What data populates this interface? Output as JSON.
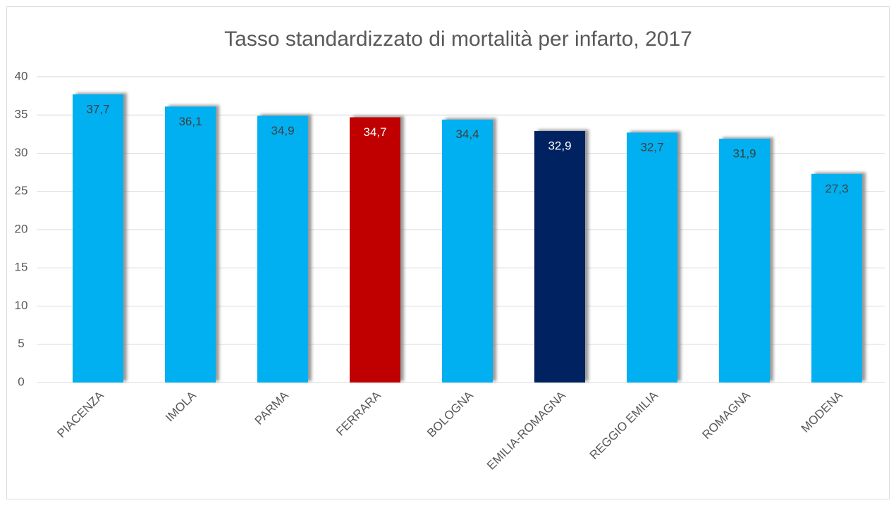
{
  "chart_data": {
    "type": "bar",
    "title": "Tasso standardizzato di mortalità per infarto, 2017",
    "categories": [
      "PIACENZA",
      "IMOLA",
      "PARMA",
      "FERRARA",
      "BOLOGNA",
      "EMILIA-ROMAGNA",
      "REGGIO EMILIA",
      "ROMAGNA",
      "MODENA"
    ],
    "values": [
      37.7,
      36.1,
      34.9,
      34.7,
      34.4,
      32.9,
      32.7,
      31.9,
      27.3
    ],
    "value_labels": [
      "37,7",
      "36,1",
      "34,9",
      "34,7",
      "34,4",
      "32,9",
      "32,7",
      "31,9",
      "27,3"
    ],
    "colors": [
      "#00b0f0",
      "#00b0f0",
      "#00b0f0",
      "#c00000",
      "#00b0f0",
      "#002060",
      "#00b0f0",
      "#00b0f0",
      "#00b0f0"
    ],
    "ylim": [
      0,
      40
    ],
    "yticks": [
      0,
      5,
      10,
      15,
      20,
      25,
      30,
      35,
      40
    ],
    "grid": true
  }
}
